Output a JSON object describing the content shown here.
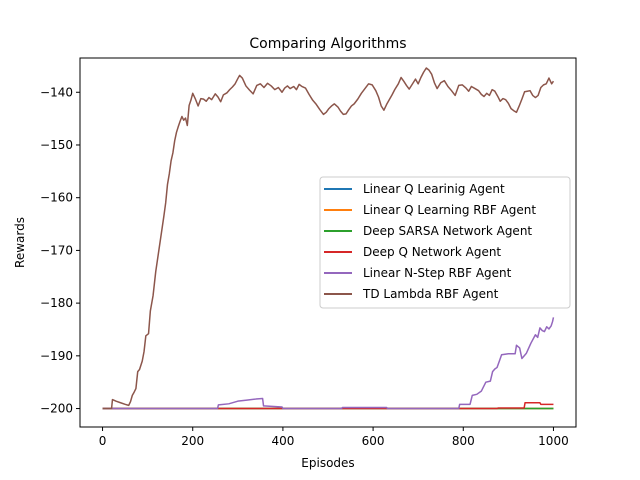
{
  "chart_data": {
    "type": "line",
    "title": "Comparing Algorithms",
    "xlabel": "Episodes",
    "ylabel": "Rewards",
    "xlim": [
      -50,
      1050
    ],
    "ylim": [
      -203.5,
      -133.5
    ],
    "xticks": [
      0,
      200,
      400,
      600,
      800,
      1000
    ],
    "xtick_labels": [
      "0",
      "200",
      "400",
      "600",
      "800",
      "1000"
    ],
    "yticks": [
      -200,
      -190,
      -180,
      -170,
      -160,
      -150,
      -140
    ],
    "ytick_labels": [
      "−200",
      "−190",
      "−180",
      "−170",
      "−160",
      "−150",
      "−140"
    ],
    "grid": false,
    "legend": "center-right",
    "series": [
      {
        "name": "Linear Q Learinig Agent",
        "color": "#1f77b4",
        "points": [
          [
            0,
            -200
          ],
          [
            1000,
            -200
          ]
        ]
      },
      {
        "name": "Linear Q Learning RBF Agent",
        "color": "#ff7f0e",
        "points": [
          [
            0,
            -200
          ],
          [
            1000,
            -200
          ]
        ]
      },
      {
        "name": "Deep SARSA Network Agent",
        "color": "#2ca02c",
        "points": [
          [
            0,
            -200
          ],
          [
            1000,
            -200
          ]
        ]
      },
      {
        "name": "Deep Q Network Agent",
        "color": "#d62728",
        "points": [
          [
            0,
            -200
          ],
          [
            875,
            -200
          ],
          [
            877,
            -199.9
          ],
          [
            935,
            -199.9
          ],
          [
            937,
            -198.9
          ],
          [
            970,
            -198.9
          ],
          [
            972,
            -199.2
          ],
          [
            1000,
            -199.2
          ]
        ]
      },
      {
        "name": "Linear N-Step RBF Agent",
        "color": "#9467bd",
        "points": [
          [
            0,
            -200
          ],
          [
            255,
            -200
          ],
          [
            257,
            -199.3
          ],
          [
            280,
            -199.1
          ],
          [
            300,
            -198.6
          ],
          [
            320,
            -198.4
          ],
          [
            340,
            -198.2
          ],
          [
            355,
            -198.1
          ],
          [
            357,
            -199.5
          ],
          [
            380,
            -199.6
          ],
          [
            398,
            -199.7
          ],
          [
            400,
            -200
          ],
          [
            530,
            -200
          ],
          [
            532,
            -199.8
          ],
          [
            630,
            -199.8
          ],
          [
            632,
            -200
          ],
          [
            790,
            -200
          ],
          [
            792,
            -199.2
          ],
          [
            815,
            -199.2
          ],
          [
            820,
            -197.5
          ],
          [
            830,
            -197.3
          ],
          [
            840,
            -196.7
          ],
          [
            850,
            -195
          ],
          [
            860,
            -194.8
          ],
          [
            865,
            -193
          ],
          [
            870,
            -192.5
          ],
          [
            875,
            -192.2
          ],
          [
            880,
            -191
          ],
          [
            885,
            -189.8
          ],
          [
            900,
            -189.6
          ],
          [
            915,
            -189.6
          ],
          [
            918,
            -188
          ],
          [
            925,
            -188.5
          ],
          [
            930,
            -190.5
          ],
          [
            940,
            -189.5
          ],
          [
            950,
            -187.6
          ],
          [
            960,
            -186
          ],
          [
            965,
            -186.5
          ],
          [
            970,
            -184.7
          ],
          [
            975,
            -185.2
          ],
          [
            980,
            -185.4
          ],
          [
            985,
            -184.5
          ],
          [
            990,
            -184.9
          ],
          [
            995,
            -184.3
          ],
          [
            998,
            -183.5
          ],
          [
            1000,
            -182.7
          ]
        ]
      },
      {
        "name": "TD Lambda RBF Agent",
        "color": "#8c564b",
        "points": [
          [
            0,
            -200
          ],
          [
            20,
            -200
          ],
          [
            22,
            -198.3
          ],
          [
            30,
            -198.6
          ],
          [
            40,
            -198.9
          ],
          [
            50,
            -199.2
          ],
          [
            58,
            -199.4
          ],
          [
            62,
            -198.7
          ],
          [
            66,
            -197.5
          ],
          [
            70,
            -196.9
          ],
          [
            74,
            -196.2
          ],
          [
            78,
            -193
          ],
          [
            82,
            -192.6
          ],
          [
            88,
            -191
          ],
          [
            92,
            -189.2
          ],
          [
            96,
            -186.2
          ],
          [
            102,
            -185.8
          ],
          [
            106,
            -181.5
          ],
          [
            112,
            -178.6
          ],
          [
            118,
            -174
          ],
          [
            124,
            -170.5
          ],
          [
            130,
            -167
          ],
          [
            136,
            -163.5
          ],
          [
            140,
            -161
          ],
          [
            144,
            -157.5
          ],
          [
            148,
            -155.5
          ],
          [
            152,
            -153
          ],
          [
            156,
            -151.5
          ],
          [
            160,
            -149.2
          ],
          [
            164,
            -147.6
          ],
          [
            168,
            -146.5
          ],
          [
            172,
            -145.5
          ],
          [
            176,
            -144.6
          ],
          [
            180,
            -145.3
          ],
          [
            184,
            -144.9
          ],
          [
            188,
            -146.3
          ],
          [
            192,
            -142.5
          ],
          [
            196,
            -141.5
          ],
          [
            200,
            -140.2
          ],
          [
            206,
            -141.3
          ],
          [
            212,
            -142.6
          ],
          [
            218,
            -141.2
          ],
          [
            224,
            -141.3
          ],
          [
            230,
            -141.7
          ],
          [
            236,
            -141
          ],
          [
            242,
            -141.4
          ],
          [
            250,
            -140.3
          ],
          [
            256,
            -140.9
          ],
          [
            262,
            -141.8
          ],
          [
            268,
            -140.5
          ],
          [
            276,
            -140.1
          ],
          [
            282,
            -139.5
          ],
          [
            288,
            -139
          ],
          [
            294,
            -138.4
          ],
          [
            300,
            -137.4
          ],
          [
            304,
            -136.8
          ],
          [
            310,
            -137.3
          ],
          [
            318,
            -138.8
          ],
          [
            326,
            -139.6
          ],
          [
            334,
            -140.3
          ],
          [
            342,
            -138.7
          ],
          [
            350,
            -138.4
          ],
          [
            358,
            -139.1
          ],
          [
            366,
            -138.3
          ],
          [
            374,
            -138.8
          ],
          [
            382,
            -139.5
          ],
          [
            390,
            -139.1
          ],
          [
            398,
            -140
          ],
          [
            404,
            -139.2
          ],
          [
            410,
            -138.8
          ],
          [
            416,
            -139.3
          ],
          [
            424,
            -138.9
          ],
          [
            430,
            -139.5
          ],
          [
            436,
            -138.5
          ],
          [
            442,
            -138.9
          ],
          [
            450,
            -139.2
          ],
          [
            458,
            -140.4
          ],
          [
            466,
            -141.5
          ],
          [
            474,
            -142.3
          ],
          [
            482,
            -143.3
          ],
          [
            490,
            -144.2
          ],
          [
            496,
            -143.8
          ],
          [
            502,
            -143.1
          ],
          [
            508,
            -142.6
          ],
          [
            514,
            -142.2
          ],
          [
            522,
            -142.8
          ],
          [
            528,
            -143.6
          ],
          [
            534,
            -144.2
          ],
          [
            540,
            -144.1
          ],
          [
            546,
            -143.3
          ],
          [
            552,
            -142.6
          ],
          [
            558,
            -142.2
          ],
          [
            566,
            -141.3
          ],
          [
            574,
            -140.2
          ],
          [
            582,
            -139.3
          ],
          [
            590,
            -138.4
          ],
          [
            598,
            -138.6
          ],
          [
            606,
            -139.7
          ],
          [
            612,
            -140.9
          ],
          [
            618,
            -142.6
          ],
          [
            624,
            -143.4
          ],
          [
            630,
            -142.3
          ],
          [
            636,
            -141.4
          ],
          [
            642,
            -140.5
          ],
          [
            648,
            -139.5
          ],
          [
            656,
            -138.4
          ],
          [
            662,
            -137.2
          ],
          [
            668,
            -137.9
          ],
          [
            674,
            -138.7
          ],
          [
            680,
            -139.4
          ],
          [
            686,
            -138.6
          ],
          [
            694,
            -137.5
          ],
          [
            700,
            -138.4
          ],
          [
            706,
            -137.2
          ],
          [
            712,
            -136.2
          ],
          [
            718,
            -135.4
          ],
          [
            724,
            -135.8
          ],
          [
            730,
            -136.6
          ],
          [
            736,
            -138.2
          ],
          [
            742,
            -139.3
          ],
          [
            750,
            -138.2
          ],
          [
            758,
            -137.8
          ],
          [
            766,
            -138.9
          ],
          [
            774,
            -139.7
          ],
          [
            782,
            -140.6
          ],
          [
            790,
            -138.7
          ],
          [
            798,
            -138.6
          ],
          [
            806,
            -139.2
          ],
          [
            812,
            -139.8
          ],
          [
            818,
            -138.9
          ],
          [
            826,
            -139.3
          ],
          [
            834,
            -139.7
          ],
          [
            840,
            -140.4
          ],
          [
            846,
            -140.8
          ],
          [
            852,
            -140.2
          ],
          [
            858,
            -140.6
          ],
          [
            864,
            -139.5
          ],
          [
            870,
            -139.8
          ],
          [
            876,
            -140.7
          ],
          [
            882,
            -141.7
          ],
          [
            888,
            -141.2
          ],
          [
            894,
            -141.4
          ],
          [
            900,
            -142.1
          ],
          [
            906,
            -143.1
          ],
          [
            912,
            -143.5
          ],
          [
            918,
            -143.8
          ],
          [
            924,
            -142.6
          ],
          [
            930,
            -141.3
          ],
          [
            936,
            -139.9
          ],
          [
            942,
            -139.8
          ],
          [
            948,
            -139.7
          ],
          [
            954,
            -140.6
          ],
          [
            960,
            -141
          ],
          [
            966,
            -140.6
          ],
          [
            972,
            -139.1
          ],
          [
            978,
            -138.6
          ],
          [
            984,
            -138.4
          ],
          [
            990,
            -137.3
          ],
          [
            996,
            -138.4
          ],
          [
            1000,
            -137.9
          ]
        ]
      }
    ]
  }
}
